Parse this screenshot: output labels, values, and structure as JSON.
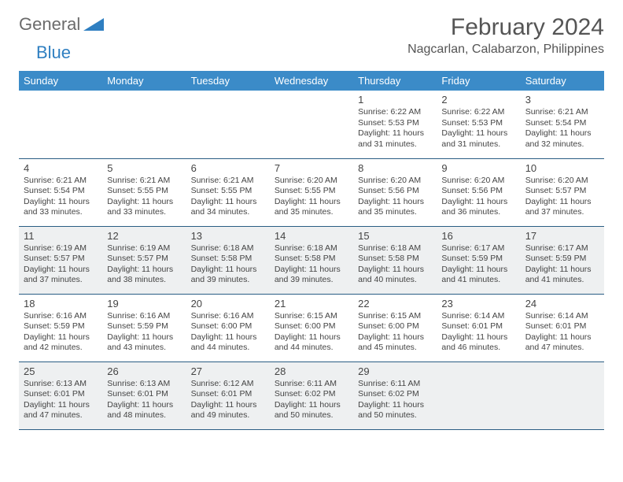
{
  "logo": {
    "part1": "General",
    "part2": "Blue"
  },
  "title": "February 2024",
  "location": "Nagcarlan, Calabarzon, Philippines",
  "day_headers": [
    "Sunday",
    "Monday",
    "Tuesday",
    "Wednesday",
    "Thursday",
    "Friday",
    "Saturday"
  ],
  "colors": {
    "header_bg": "#3b8bc8",
    "header_text": "#ffffff",
    "alt_row_bg": "#eef0f1",
    "border": "#2a5d84",
    "logo_blue": "#2f7fc1",
    "text": "#444444"
  },
  "weeks": [
    {
      "alt": false,
      "days": [
        null,
        null,
        null,
        null,
        {
          "n": "1",
          "sunrise": "6:22 AM",
          "sunset": "5:53 PM",
          "daylight": "11 hours and 31 minutes."
        },
        {
          "n": "2",
          "sunrise": "6:22 AM",
          "sunset": "5:53 PM",
          "daylight": "11 hours and 31 minutes."
        },
        {
          "n": "3",
          "sunrise": "6:21 AM",
          "sunset": "5:54 PM",
          "daylight": "11 hours and 32 minutes."
        }
      ]
    },
    {
      "alt": false,
      "days": [
        {
          "n": "4",
          "sunrise": "6:21 AM",
          "sunset": "5:54 PM",
          "daylight": "11 hours and 33 minutes."
        },
        {
          "n": "5",
          "sunrise": "6:21 AM",
          "sunset": "5:55 PM",
          "daylight": "11 hours and 33 minutes."
        },
        {
          "n": "6",
          "sunrise": "6:21 AM",
          "sunset": "5:55 PM",
          "daylight": "11 hours and 34 minutes."
        },
        {
          "n": "7",
          "sunrise": "6:20 AM",
          "sunset": "5:55 PM",
          "daylight": "11 hours and 35 minutes."
        },
        {
          "n": "8",
          "sunrise": "6:20 AM",
          "sunset": "5:56 PM",
          "daylight": "11 hours and 35 minutes."
        },
        {
          "n": "9",
          "sunrise": "6:20 AM",
          "sunset": "5:56 PM",
          "daylight": "11 hours and 36 minutes."
        },
        {
          "n": "10",
          "sunrise": "6:20 AM",
          "sunset": "5:57 PM",
          "daylight": "11 hours and 37 minutes."
        }
      ]
    },
    {
      "alt": true,
      "days": [
        {
          "n": "11",
          "sunrise": "6:19 AM",
          "sunset": "5:57 PM",
          "daylight": "11 hours and 37 minutes."
        },
        {
          "n": "12",
          "sunrise": "6:19 AM",
          "sunset": "5:57 PM",
          "daylight": "11 hours and 38 minutes."
        },
        {
          "n": "13",
          "sunrise": "6:18 AM",
          "sunset": "5:58 PM",
          "daylight": "11 hours and 39 minutes."
        },
        {
          "n": "14",
          "sunrise": "6:18 AM",
          "sunset": "5:58 PM",
          "daylight": "11 hours and 39 minutes."
        },
        {
          "n": "15",
          "sunrise": "6:18 AM",
          "sunset": "5:58 PM",
          "daylight": "11 hours and 40 minutes."
        },
        {
          "n": "16",
          "sunrise": "6:17 AM",
          "sunset": "5:59 PM",
          "daylight": "11 hours and 41 minutes."
        },
        {
          "n": "17",
          "sunrise": "6:17 AM",
          "sunset": "5:59 PM",
          "daylight": "11 hours and 41 minutes."
        }
      ]
    },
    {
      "alt": false,
      "days": [
        {
          "n": "18",
          "sunrise": "6:16 AM",
          "sunset": "5:59 PM",
          "daylight": "11 hours and 42 minutes."
        },
        {
          "n": "19",
          "sunrise": "6:16 AM",
          "sunset": "5:59 PM",
          "daylight": "11 hours and 43 minutes."
        },
        {
          "n": "20",
          "sunrise": "6:16 AM",
          "sunset": "6:00 PM",
          "daylight": "11 hours and 44 minutes."
        },
        {
          "n": "21",
          "sunrise": "6:15 AM",
          "sunset": "6:00 PM",
          "daylight": "11 hours and 44 minutes."
        },
        {
          "n": "22",
          "sunrise": "6:15 AM",
          "sunset": "6:00 PM",
          "daylight": "11 hours and 45 minutes."
        },
        {
          "n": "23",
          "sunrise": "6:14 AM",
          "sunset": "6:01 PM",
          "daylight": "11 hours and 46 minutes."
        },
        {
          "n": "24",
          "sunrise": "6:14 AM",
          "sunset": "6:01 PM",
          "daylight": "11 hours and 47 minutes."
        }
      ]
    },
    {
      "alt": true,
      "days": [
        {
          "n": "25",
          "sunrise": "6:13 AM",
          "sunset": "6:01 PM",
          "daylight": "11 hours and 47 minutes."
        },
        {
          "n": "26",
          "sunrise": "6:13 AM",
          "sunset": "6:01 PM",
          "daylight": "11 hours and 48 minutes."
        },
        {
          "n": "27",
          "sunrise": "6:12 AM",
          "sunset": "6:01 PM",
          "daylight": "11 hours and 49 minutes."
        },
        {
          "n": "28",
          "sunrise": "6:11 AM",
          "sunset": "6:02 PM",
          "daylight": "11 hours and 50 minutes."
        },
        {
          "n": "29",
          "sunrise": "6:11 AM",
          "sunset": "6:02 PM",
          "daylight": "11 hours and 50 minutes."
        },
        null,
        null
      ]
    }
  ],
  "labels": {
    "sunrise": "Sunrise:",
    "sunset": "Sunset:",
    "daylight": "Daylight:"
  }
}
